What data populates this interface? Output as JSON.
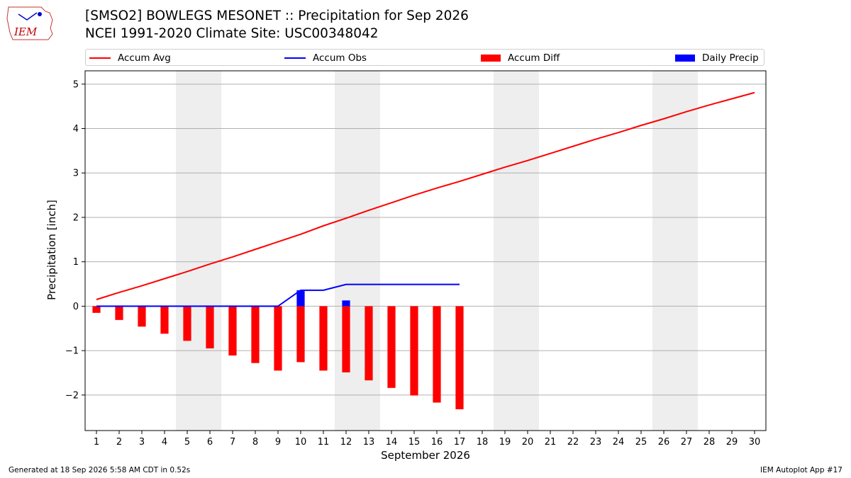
{
  "title_line1": "[SMSO2] BOWLEGS MESONET :: Precipitation for Sep 2026",
  "title_line2": "NCEI 1991-2020 Climate Site: USC00348042",
  "logo_text": "IEM",
  "footer_left": "Generated at 18 Sep 2026 5:58 AM CDT in 0.52s",
  "footer_right": "IEM Autoplot App #17",
  "chart_data": {
    "type": "bar",
    "xlabel": "September 2026",
    "ylabel": "Precipitation [inch]",
    "xlim": [
      0.5,
      30.5
    ],
    "ylim": [
      -2.8,
      5.3
    ],
    "yticks": [
      -2,
      -1,
      0,
      1,
      2,
      3,
      4,
      5
    ],
    "ytick_labels": [
      "−2",
      "−1",
      "0",
      "1",
      "2",
      "3",
      "4",
      "5"
    ],
    "xticks": [
      1,
      2,
      3,
      4,
      5,
      6,
      7,
      8,
      9,
      10,
      11,
      12,
      13,
      14,
      15,
      16,
      17,
      18,
      19,
      20,
      21,
      22,
      23,
      24,
      25,
      26,
      27,
      28,
      29,
      30
    ],
    "grid": "horizontal",
    "legend_position": "top",
    "weekend_shading": [
      [
        4.5,
        6.5
      ],
      [
        11.5,
        13.5
      ],
      [
        18.5,
        20.5
      ],
      [
        25.5,
        27.5
      ]
    ],
    "series": [
      {
        "name": "Accum Avg",
        "kind": "line",
        "color": "#ff0000",
        "x": [
          1,
          2,
          3,
          4,
          5,
          6,
          7,
          8,
          9,
          10,
          11,
          12,
          13,
          14,
          15,
          16,
          17,
          18,
          19,
          20,
          21,
          22,
          23,
          24,
          25,
          26,
          27,
          28,
          29,
          30
        ],
        "values": [
          0.15,
          0.31,
          0.46,
          0.62,
          0.78,
          0.95,
          1.11,
          1.28,
          1.45,
          1.62,
          1.81,
          1.98,
          2.16,
          2.33,
          2.5,
          2.66,
          2.81,
          2.97,
          3.13,
          3.28,
          3.44,
          3.6,
          3.76,
          3.91,
          4.07,
          4.22,
          4.38,
          4.53,
          4.67,
          4.81
        ]
      },
      {
        "name": "Accum Obs",
        "kind": "line",
        "color": "#0000ff",
        "x": [
          1,
          2,
          3,
          4,
          5,
          6,
          7,
          8,
          9,
          10,
          11,
          12,
          13,
          14,
          15,
          16,
          17
        ],
        "values": [
          0,
          0,
          0,
          0,
          0,
          0,
          0,
          0,
          0,
          0.36,
          0.36,
          0.49,
          0.49,
          0.49,
          0.49,
          0.49,
          0.49
        ]
      },
      {
        "name": "Accum Diff",
        "kind": "bar",
        "color": "#ff0000",
        "x": [
          1,
          2,
          3,
          4,
          5,
          6,
          7,
          8,
          9,
          10,
          11,
          12,
          13,
          14,
          15,
          16,
          17
        ],
        "values": [
          -0.15,
          -0.31,
          -0.46,
          -0.62,
          -0.78,
          -0.95,
          -1.11,
          -1.28,
          -1.45,
          -1.26,
          -1.45,
          -1.49,
          -1.67,
          -1.84,
          -2.01,
          -2.17,
          -2.32
        ]
      },
      {
        "name": "Daily Precip",
        "kind": "bar",
        "color": "#0000ff",
        "x": [
          1,
          2,
          3,
          4,
          5,
          6,
          7,
          8,
          9,
          10,
          11,
          12,
          13,
          14,
          15,
          16,
          17
        ],
        "values": [
          0,
          0,
          0,
          0,
          0,
          0,
          0,
          0,
          0,
          0.36,
          0,
          0.13,
          0,
          0,
          0,
          0,
          0
        ]
      }
    ]
  }
}
